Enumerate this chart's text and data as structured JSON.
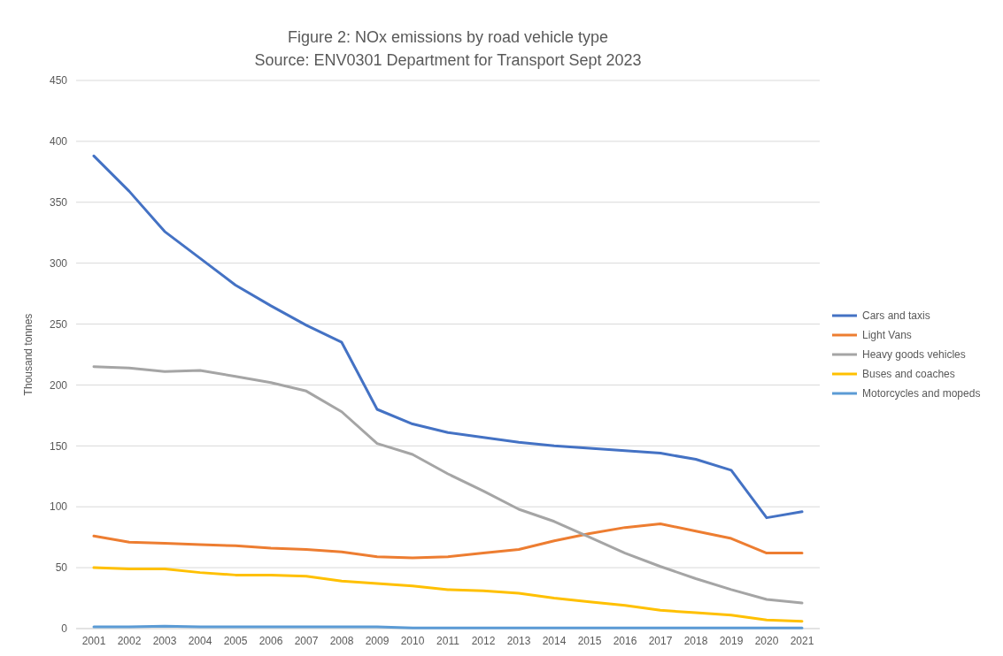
{
  "chart_data": {
    "type": "line",
    "title": "Figure 2: NOx emissions  by road vehicle type",
    "subtitle": "Source:  ENV0301 Department for Transport Sept 2023",
    "ylabel": "Thousand tonnes",
    "categories": [
      "2001",
      "2002",
      "2003",
      "2004",
      "2005",
      "2006",
      "2007",
      "2008",
      "2009",
      "2010",
      "2011",
      "2012",
      "2013",
      "2014",
      "2015",
      "2016",
      "2017",
      "2018",
      "2019",
      "2020",
      "2021"
    ],
    "ylim": [
      0,
      450
    ],
    "yticks": [
      0,
      50,
      100,
      150,
      200,
      250,
      300,
      350,
      400,
      450
    ],
    "grid": "y",
    "legend": "right",
    "series": [
      {
        "name": "Cars and taxis",
        "color": "#4472c4",
        "values": [
          388,
          359,
          326,
          304,
          282,
          265,
          249,
          235,
          180,
          168,
          161,
          157,
          153,
          150,
          148,
          146,
          144,
          139,
          130,
          91,
          96
        ]
      },
      {
        "name": "Light Vans",
        "color": "#ed7d31",
        "values": [
          76,
          71,
          70,
          69,
          68,
          66,
          65,
          63,
          59,
          58,
          59,
          62,
          65,
          72,
          78,
          83,
          86,
          80,
          74,
          62,
          62
        ]
      },
      {
        "name": "Heavy goods vehicles",
        "color": "#a5a5a5",
        "values": [
          215,
          214,
          211,
          212,
          207,
          202,
          195,
          178,
          152,
          143,
          127,
          113,
          98,
          88,
          75,
          62,
          51,
          41,
          32,
          24,
          21
        ]
      },
      {
        "name": "Buses and coaches",
        "color": "#ffc000",
        "values": [
          50,
          49,
          49,
          46,
          44,
          44,
          43,
          39,
          37,
          35,
          32,
          31,
          29,
          25,
          22,
          19,
          15,
          13,
          11,
          7,
          6
        ]
      },
      {
        "name": "Motorcycles and mopeds",
        "color": "#5b9bd5",
        "values": [
          1.5,
          1.5,
          2,
          1.5,
          1.5,
          1.5,
          1.5,
          1.5,
          1.5,
          0.5,
          0.5,
          0.5,
          0.5,
          0.5,
          0.5,
          0.5,
          0.5,
          0.5,
          0.5,
          0.5,
          0.5
        ]
      }
    ]
  }
}
